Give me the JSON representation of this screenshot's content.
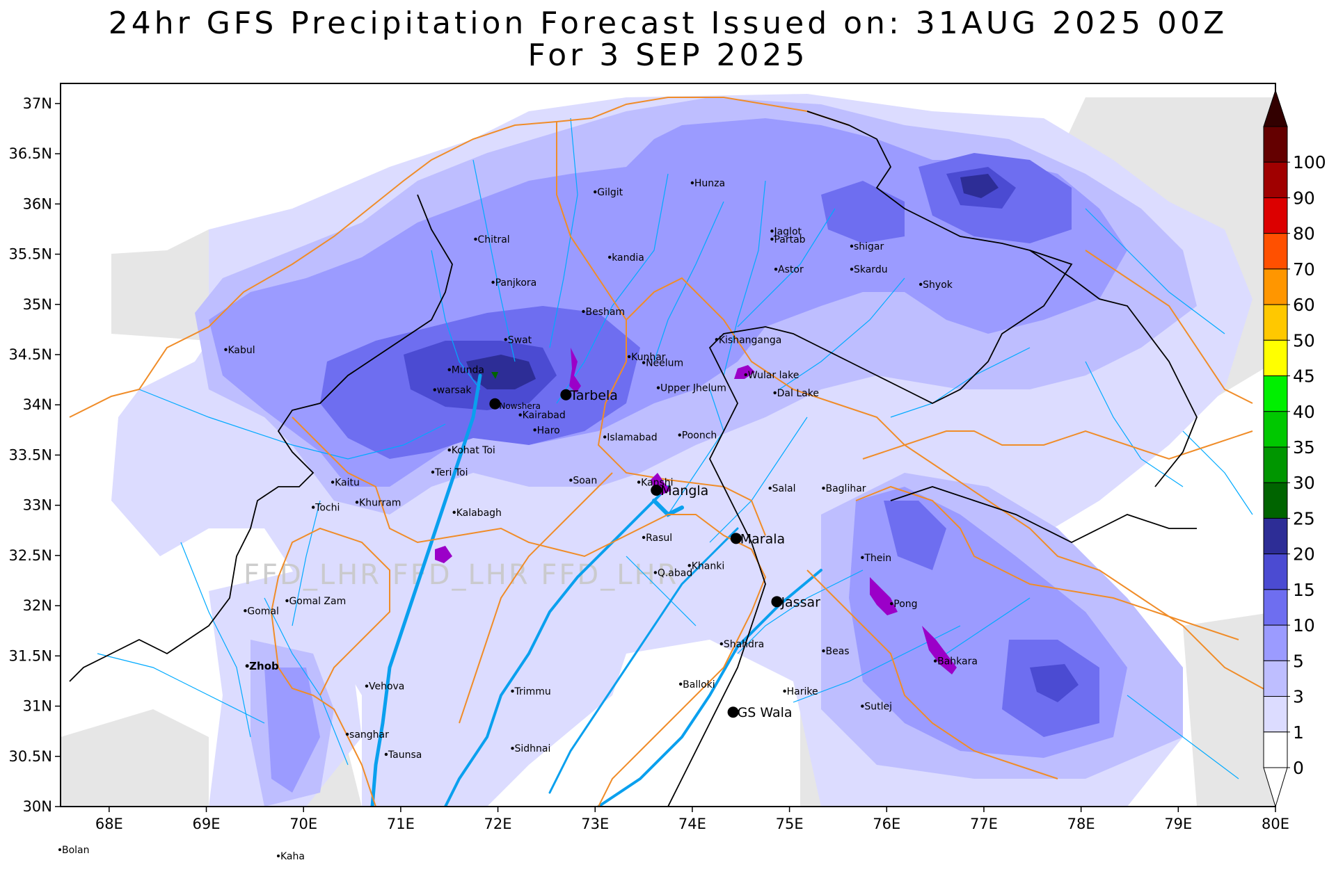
{
  "title": {
    "line1": "24hr GFS Precipitation Forecast Issued on:  31AUG 2025 00Z",
    "line2": "For 3 SEP 2025"
  },
  "axes": {
    "lon_range": [
      67.5,
      80
    ],
    "lat_range": [
      30,
      37.2
    ],
    "lon_ticks": [
      "68E",
      "69E",
      "70E",
      "71E",
      "72E",
      "73E",
      "74E",
      "75E",
      "76E",
      "77E",
      "78E",
      "79E",
      "80E"
    ],
    "lat_ticks": [
      "30N",
      "30.5N",
      "31N",
      "31.5N",
      "32N",
      "32.5N",
      "33N",
      "33.5N",
      "34N",
      "34.5N",
      "35N",
      "35.5N",
      "36N",
      "36.5N",
      "37N"
    ]
  },
  "colorbar": {
    "labels": [
      "0",
      "1",
      "3",
      "5",
      "10",
      "15",
      "20",
      "25",
      "30",
      "35",
      "40",
      "45",
      "50",
      "60",
      "70",
      "80",
      "90",
      "100"
    ],
    "colors": [
      "#e6e6e6",
      "#ffffff",
      "#dcdcff",
      "#bebeff",
      "#9b9bff",
      "#6e6ef0",
      "#4b4bd2",
      "#2d2d96",
      "#006400",
      "#009600",
      "#00c800",
      "#00f000",
      "#ffff00",
      "#ffc800",
      "#ff9600",
      "#ff5000",
      "#dc0000",
      "#a00000",
      "#640000",
      "#320000"
    ]
  },
  "watermark": "FFD_LHR FFD_LHR FFD_LHR",
  "stations": [
    {
      "name": "Gilgit",
      "lon": 73.0,
      "lat": 36.12
    },
    {
      "name": "Hunza",
      "lon": 74.0,
      "lat": 36.21
    },
    {
      "name": "Chitral",
      "lon": 71.77,
      "lat": 35.65
    },
    {
      "name": "kandia",
      "lon": 73.15,
      "lat": 35.47
    },
    {
      "name": "Jaglot",
      "lon": 74.82,
      "lat": 35.73
    },
    {
      "name": "Partab",
      "lon": 74.82,
      "lat": 35.65
    },
    {
      "name": "Astor",
      "lon": 74.86,
      "lat": 35.35
    },
    {
      "name": "shigar",
      "lon": 75.64,
      "lat": 35.58
    },
    {
      "name": "Skardu",
      "lon": 75.64,
      "lat": 35.35
    },
    {
      "name": "Shyok",
      "lon": 76.35,
      "lat": 35.2
    },
    {
      "name": "Panjkora",
      "lon": 71.95,
      "lat": 35.22
    },
    {
      "name": "Kabul",
      "lon": 69.2,
      "lat": 34.55
    },
    {
      "name": "Besham",
      "lon": 72.88,
      "lat": 34.93
    },
    {
      "name": "Kishanganga",
      "lon": 74.25,
      "lat": 34.65
    },
    {
      "name": "Swat",
      "lon": 72.08,
      "lat": 34.65
    },
    {
      "name": "Kunhar",
      "lon": 73.35,
      "lat": 34.48
    },
    {
      "name": "Neelum",
      "lon": 73.5,
      "lat": 34.42
    },
    {
      "name": "Munda",
      "lon": 71.5,
      "lat": 34.35
    },
    {
      "name": "Wular lake",
      "lon": 74.55,
      "lat": 34.3
    },
    {
      "name": "warsak",
      "lon": 71.35,
      "lat": 34.15
    },
    {
      "name": "Upper Jhelum",
      "lon": 73.65,
      "lat": 34.17
    },
    {
      "name": "Dal Lake",
      "lon": 74.85,
      "lat": 34.12
    },
    {
      "name": "Kairabad",
      "lon": 72.23,
      "lat": 33.9
    },
    {
      "name": "Haro",
      "lon": 72.38,
      "lat": 33.75
    },
    {
      "name": "Islamabad",
      "lon": 73.1,
      "lat": 33.68
    },
    {
      "name": "Poonch",
      "lon": 73.87,
      "lat": 33.7
    },
    {
      "name": "Kohat Toi",
      "lon": 71.5,
      "lat": 33.55
    },
    {
      "name": "Teri Toi",
      "lon": 71.33,
      "lat": 33.33
    },
    {
      "name": "Soan",
      "lon": 72.75,
      "lat": 33.25
    },
    {
      "name": "Kanshi",
      "lon": 73.45,
      "lat": 33.23
    },
    {
      "name": "Salal",
      "lon": 74.8,
      "lat": 33.17
    },
    {
      "name": "Baglihar",
      "lon": 75.35,
      "lat": 33.17
    },
    {
      "name": "Kaitu",
      "lon": 70.3,
      "lat": 33.23
    },
    {
      "name": "Tochi",
      "lon": 70.1,
      "lat": 32.98
    },
    {
      "name": "Khurram",
      "lon": 70.55,
      "lat": 33.03
    },
    {
      "name": "Kalabagh",
      "lon": 71.55,
      "lat": 32.93
    },
    {
      "name": "Rasul",
      "lon": 73.5,
      "lat": 32.68
    },
    {
      "name": "Khanki",
      "lon": 73.97,
      "lat": 32.4
    },
    {
      "name": "Q.abad",
      "lon": 73.62,
      "lat": 32.33
    },
    {
      "name": "Thein",
      "lon": 75.75,
      "lat": 32.48
    },
    {
      "name": "Gomal Zam",
      "lon": 69.83,
      "lat": 32.05
    },
    {
      "name": "Gomal",
      "lon": 69.4,
      "lat": 31.95
    },
    {
      "name": "Pong",
      "lon": 76.05,
      "lat": 32.02
    },
    {
      "name": "Shahdra",
      "lon": 74.3,
      "lat": 31.62
    },
    {
      "name": "Beas",
      "lon": 75.35,
      "lat": 31.55
    },
    {
      "name": "Bahkara",
      "lon": 76.5,
      "lat": 31.45
    },
    {
      "name": "Vehova",
      "lon": 70.65,
      "lat": 31.2
    },
    {
      "name": "Balloki",
      "lon": 73.88,
      "lat": 31.22
    },
    {
      "name": "Trimmu",
      "lon": 72.15,
      "lat": 31.15
    },
    {
      "name": "Harike",
      "lon": 74.95,
      "lat": 31.15
    },
    {
      "name": "Sutlej",
      "lon": 75.75,
      "lat": 31.0
    },
    {
      "name": "sanghar",
      "lon": 70.45,
      "lat": 30.72
    },
    {
      "name": "Sidhnai",
      "lon": 72.15,
      "lat": 30.58
    },
    {
      "name": "Taunsa",
      "lon": 70.85,
      "lat": 30.52
    }
  ],
  "stations_bold": [
    {
      "name": "Zhob",
      "lon": 69.42,
      "lat": 31.4
    }
  ],
  "dams": [
    {
      "name": "Tarbela",
      "lon": 72.7,
      "lat": 34.1
    },
    {
      "name": "Nowshera",
      "lon": 71.97,
      "lat": 34.01,
      "small": true
    },
    {
      "name": "Mangla",
      "lon": 73.63,
      "lat": 33.15
    },
    {
      "name": "Marala",
      "lon": 74.45,
      "lat": 32.67
    },
    {
      "name": "Jassar",
      "lon": 74.87,
      "lat": 32.04
    },
    {
      "name": "GS Wala",
      "lon": 74.42,
      "lat": 30.94
    }
  ],
  "outside_stations": [
    {
      "name": "Bolan"
    },
    {
      "name": "Kaha"
    }
  ]
}
